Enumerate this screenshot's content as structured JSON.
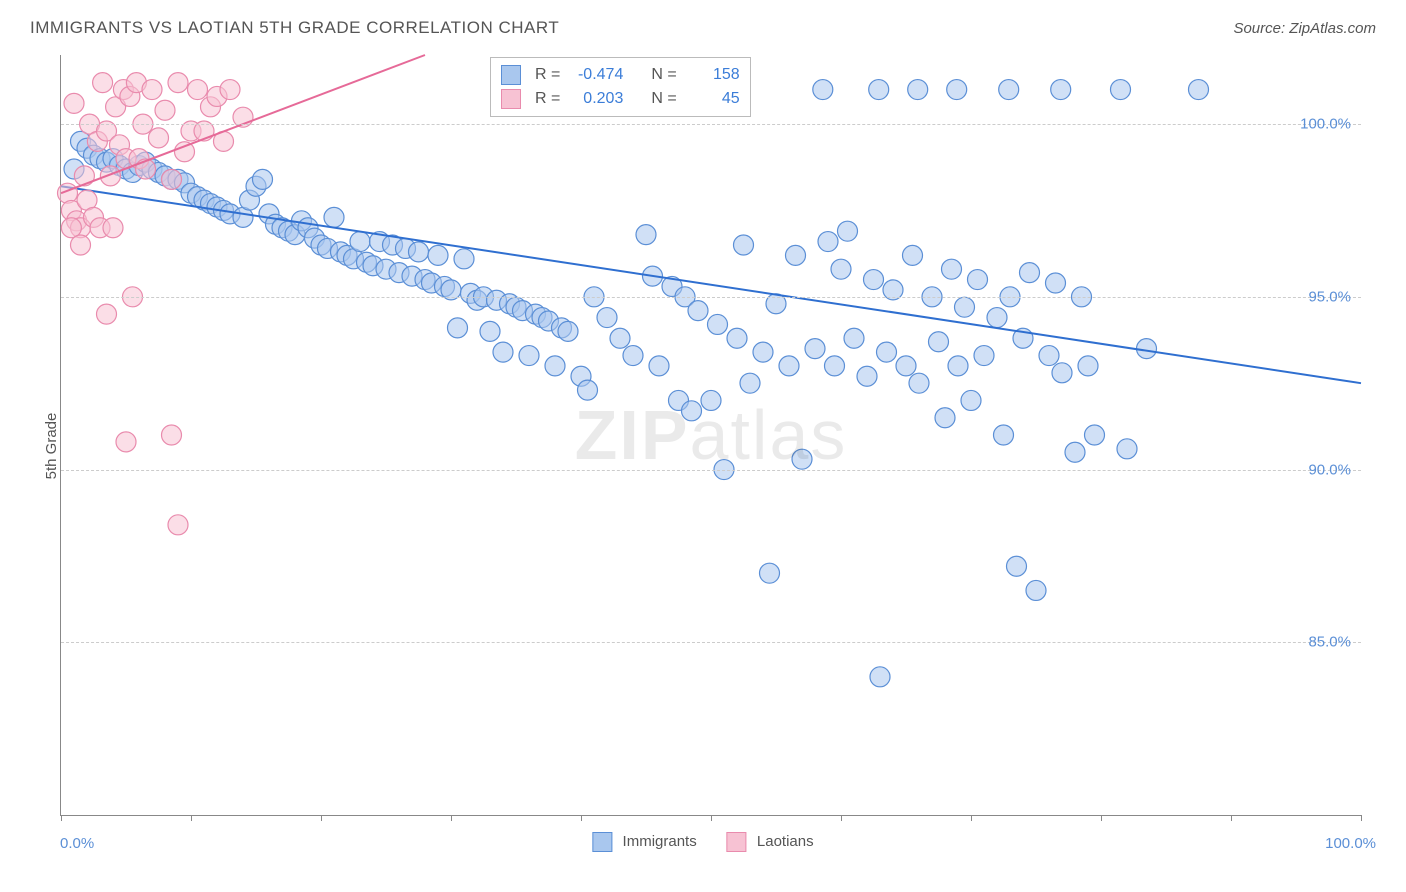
{
  "title": "IMMIGRANTS VS LAOTIAN 5TH GRADE CORRELATION CHART",
  "source": "Source: ZipAtlas.com",
  "yaxis_label": "5th Grade",
  "watermark": "ZIPatlas",
  "chart": {
    "type": "scatter",
    "xlim": [
      0,
      100
    ],
    "ylim": [
      80,
      102
    ],
    "yticks": [
      85.0,
      90.0,
      95.0,
      100.0
    ],
    "ytick_labels": [
      "85.0%",
      "90.0%",
      "95.0%",
      "100.0%"
    ],
    "xtick_positions": [
      0,
      10,
      20,
      30,
      40,
      50,
      60,
      70,
      80,
      90,
      100
    ],
    "x_origin_label": "0.0%",
    "x_max_label": "100.0%",
    "background_color": "#ffffff",
    "grid_color": "#cccccc",
    "axis_color": "#888888",
    "marker_radius": 10,
    "marker_opacity": 0.55,
    "line_width": 2,
    "series": [
      {
        "name": "Immigrants",
        "fill": "#a9c7ee",
        "stroke": "#5b8fd6",
        "line_color": "#2f6fd0",
        "R": -0.474,
        "N": 158,
        "trend": {
          "x1": 0,
          "y1": 98.2,
          "x2": 100,
          "y2": 92.5
        },
        "points": [
          [
            1,
            98.7
          ],
          [
            1.5,
            99.5
          ],
          [
            2,
            99.3
          ],
          [
            2.5,
            99.1
          ],
          [
            3,
            99.0
          ],
          [
            3.5,
            98.9
          ],
          [
            4,
            99.0
          ],
          [
            4.5,
            98.8
          ],
          [
            5,
            98.7
          ],
          [
            5.5,
            98.6
          ],
          [
            6,
            98.8
          ],
          [
            6.5,
            98.9
          ],
          [
            7,
            98.7
          ],
          [
            7.5,
            98.6
          ],
          [
            8,
            98.5
          ],
          [
            8.5,
            98.4
          ],
          [
            9,
            98.4
          ],
          [
            9.5,
            98.3
          ],
          [
            10,
            98.0
          ],
          [
            10.5,
            97.9
          ],
          [
            11,
            97.8
          ],
          [
            11.5,
            97.7
          ],
          [
            12,
            97.6
          ],
          [
            12.5,
            97.5
          ],
          [
            13,
            97.4
          ],
          [
            14,
            97.3
          ],
          [
            14.5,
            97.8
          ],
          [
            15,
            98.2
          ],
          [
            15.5,
            98.4
          ],
          [
            16,
            97.4
          ],
          [
            16.5,
            97.1
          ],
          [
            17,
            97.0
          ],
          [
            17.5,
            96.9
          ],
          [
            18,
            96.8
          ],
          [
            18.5,
            97.2
          ],
          [
            19,
            97.0
          ],
          [
            19.5,
            96.7
          ],
          [
            20,
            96.5
          ],
          [
            20.5,
            96.4
          ],
          [
            21,
            97.3
          ],
          [
            21.5,
            96.3
          ],
          [
            22,
            96.2
          ],
          [
            22.5,
            96.1
          ],
          [
            23,
            96.6
          ],
          [
            23.5,
            96.0
          ],
          [
            24,
            95.9
          ],
          [
            24.5,
            96.6
          ],
          [
            25,
            95.8
          ],
          [
            25.5,
            96.5
          ],
          [
            26,
            95.7
          ],
          [
            26.5,
            96.4
          ],
          [
            27,
            95.6
          ],
          [
            27.5,
            96.3
          ],
          [
            28,
            95.5
          ],
          [
            28.5,
            95.4
          ],
          [
            29,
            96.2
          ],
          [
            29.5,
            95.3
          ],
          [
            30,
            95.2
          ],
          [
            30.5,
            94.1
          ],
          [
            31,
            96.1
          ],
          [
            31.5,
            95.1
          ],
          [
            32,
            94.9
          ],
          [
            32.5,
            95.0
          ],
          [
            33,
            94.0
          ],
          [
            33.5,
            94.9
          ],
          [
            34,
            93.4
          ],
          [
            34.5,
            94.8
          ],
          [
            35,
            94.7
          ],
          [
            35.5,
            94.6
          ],
          [
            36,
            93.3
          ],
          [
            36.5,
            94.5
          ],
          [
            37,
            94.4
          ],
          [
            37.5,
            94.3
          ],
          [
            38,
            93.0
          ],
          [
            38.5,
            94.1
          ],
          [
            39,
            94.0
          ],
          [
            40,
            92.7
          ],
          [
            40.5,
            92.3
          ],
          [
            41,
            95.0
          ],
          [
            42,
            94.4
          ],
          [
            43,
            93.8
          ],
          [
            44,
            93.3
          ],
          [
            45,
            96.8
          ],
          [
            45.5,
            95.6
          ],
          [
            46,
            93.0
          ],
          [
            47,
            95.3
          ],
          [
            47.5,
            92.0
          ],
          [
            48,
            95.0
          ],
          [
            48.5,
            91.7
          ],
          [
            49,
            94.6
          ],
          [
            50,
            92.0
          ],
          [
            50.5,
            94.2
          ],
          [
            51,
            90.0
          ],
          [
            52,
            93.8
          ],
          [
            52.5,
            96.5
          ],
          [
            53,
            92.5
          ],
          [
            54,
            93.4
          ],
          [
            54.5,
            87.0
          ],
          [
            55,
            94.8
          ],
          [
            56,
            93.0
          ],
          [
            56.5,
            96.2
          ],
          [
            57,
            90.3
          ],
          [
            58,
            93.5
          ],
          [
            58.6,
            101.0
          ],
          [
            59,
            96.6
          ],
          [
            59.5,
            93.0
          ],
          [
            60,
            95.8
          ],
          [
            60.5,
            96.9
          ],
          [
            61,
            93.8
          ],
          [
            62,
            92.7
          ],
          [
            62.5,
            95.5
          ],
          [
            62.9,
            101.0
          ],
          [
            63,
            84.0
          ],
          [
            63.5,
            93.4
          ],
          [
            64,
            95.2
          ],
          [
            65,
            93.0
          ],
          [
            65.5,
            96.2
          ],
          [
            65.9,
            101.0
          ],
          [
            66,
            92.5
          ],
          [
            67,
            95.0
          ],
          [
            67.5,
            93.7
          ],
          [
            68,
            91.5
          ],
          [
            68.5,
            95.8
          ],
          [
            68.9,
            101.0
          ],
          [
            69,
            93.0
          ],
          [
            69.5,
            94.7
          ],
          [
            70,
            92.0
          ],
          [
            70.5,
            95.5
          ],
          [
            71,
            93.3
          ],
          [
            72,
            94.4
          ],
          [
            72.5,
            91.0
          ],
          [
            72.9,
            101.0
          ],
          [
            73,
            95.0
          ],
          [
            73.5,
            87.2
          ],
          [
            74,
            93.8
          ],
          [
            74.5,
            95.7
          ],
          [
            75,
            86.5
          ],
          [
            76,
            93.3
          ],
          [
            76.5,
            95.4
          ],
          [
            76.9,
            101.0
          ],
          [
            77,
            92.8
          ],
          [
            78,
            90.5
          ],
          [
            78.5,
            95.0
          ],
          [
            79,
            93.0
          ],
          [
            79.5,
            91.0
          ],
          [
            81.5,
            101.0
          ],
          [
            82,
            90.6
          ],
          [
            83.5,
            93.5
          ],
          [
            87.5,
            101.0
          ]
        ]
      },
      {
        "name": "Laotians",
        "fill": "#f7c2d3",
        "stroke": "#e98bad",
        "line_color": "#e66a98",
        "R": 0.203,
        "N": 45,
        "trend": {
          "x1": 0,
          "y1": 98.0,
          "x2": 28,
          "y2": 102.0
        },
        "points": [
          [
            0.5,
            98.0
          ],
          [
            0.8,
            97.5
          ],
          [
            1.0,
            100.6
          ],
          [
            1.2,
            97.2
          ],
          [
            1.5,
            97.0
          ],
          [
            1.8,
            98.5
          ],
          [
            2.0,
            97.8
          ],
          [
            2.2,
            100.0
          ],
          [
            2.5,
            97.3
          ],
          [
            2.8,
            99.5
          ],
          [
            3.0,
            97.0
          ],
          [
            3.2,
            101.2
          ],
          [
            3.5,
            99.8
          ],
          [
            3.8,
            98.5
          ],
          [
            4.0,
            97.0
          ],
          [
            4.2,
            100.5
          ],
          [
            4.5,
            99.4
          ],
          [
            4.8,
            101.0
          ],
          [
            5.0,
            99.0
          ],
          [
            5.3,
            100.8
          ],
          [
            5.5,
            95.0
          ],
          [
            5.8,
            101.2
          ],
          [
            6.0,
            99.0
          ],
          [
            6.3,
            100.0
          ],
          [
            6.5,
            98.7
          ],
          [
            7.0,
            101.0
          ],
          [
            7.5,
            99.6
          ],
          [
            8.0,
            100.4
          ],
          [
            8.5,
            98.4
          ],
          [
            9.0,
            101.2
          ],
          [
            9.5,
            99.2
          ],
          [
            10.0,
            99.8
          ],
          [
            10.5,
            101.0
          ],
          [
            11.0,
            99.8
          ],
          [
            11.5,
            100.5
          ],
          [
            12.0,
            100.8
          ],
          [
            12.5,
            99.5
          ],
          [
            13.0,
            101.0
          ],
          [
            14.0,
            100.2
          ],
          [
            3.5,
            94.5
          ],
          [
            5.0,
            90.8
          ],
          [
            8.5,
            91.0
          ],
          [
            9.0,
            88.4
          ],
          [
            0.8,
            97.0
          ],
          [
            1.5,
            96.5
          ]
        ]
      }
    ]
  },
  "legend": {
    "series1_label": "Immigrants",
    "series2_label": "Laotians"
  },
  "stats_labels": {
    "R": "R =",
    "N": "N ="
  }
}
